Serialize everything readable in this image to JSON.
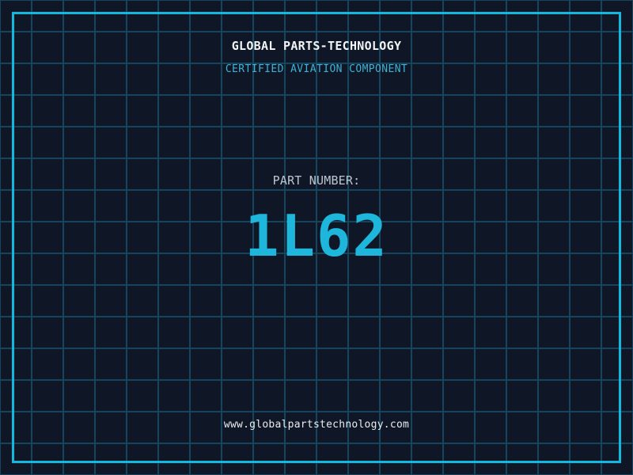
{
  "content": {
    "company_name": "GLOBAL PARTS-TECHNOLOGY",
    "tagline": "CERTIFIED AVIATION COMPONENT",
    "part_label": "PART NUMBER:",
    "part_number": "1L62",
    "website": "www.globalpartstechnology.com"
  },
  "colors": {
    "background": "#0f1726",
    "grid_line": "#15465e",
    "frame": "#12b9dd",
    "company_name_text": "#f2f5f7",
    "tagline_text": "#3fb1d5",
    "part_label_text": "#bdc7d0",
    "part_number_text": "#1fb6dc",
    "website_text": "#e9edf1"
  }
}
